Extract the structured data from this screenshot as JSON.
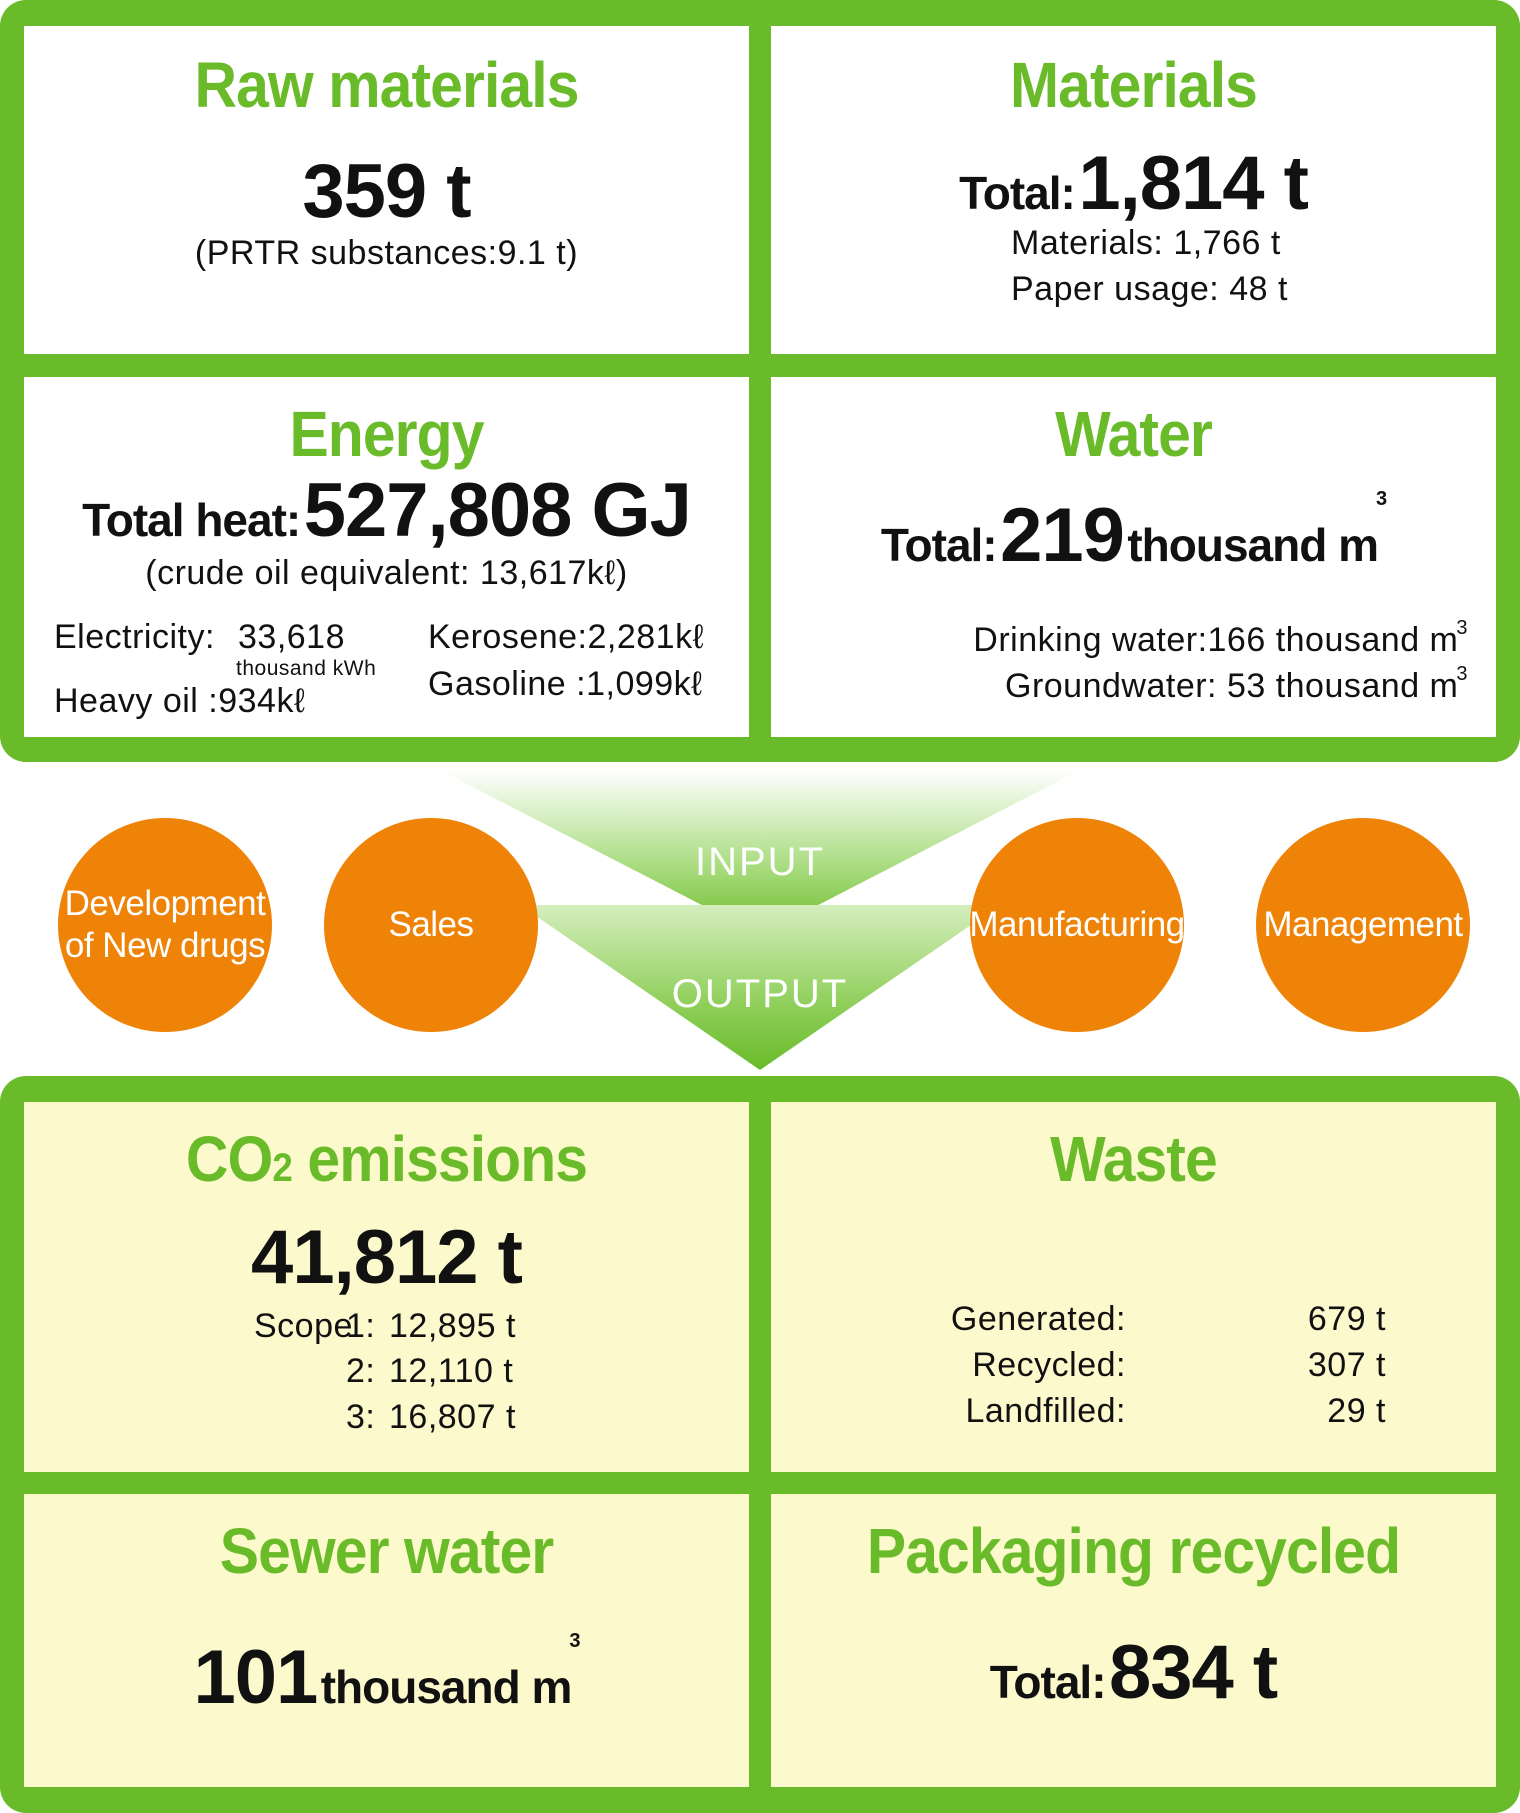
{
  "input": {
    "raw_materials": {
      "title": "Raw materials",
      "value": "359 t",
      "note": "(PRTR substances:9.1 t)"
    },
    "materials": {
      "title": "Materials",
      "total_label": "Total:",
      "total_value": "1,814 t",
      "lines": [
        "Materials: 1,766 t",
        "Paper usage: 48 t"
      ]
    },
    "energy": {
      "title": "Energy",
      "total_label": "Total heat:",
      "total_value": "527,808 GJ",
      "note": "(crude oil equivalent: 13,617kℓ)",
      "electricity_label": "Electricity:",
      "electricity_value": "33,618",
      "electricity_unit": "thousand kWh",
      "heavy_oil": "Heavy oil :934kℓ",
      "kerosene": "Kerosene:2,281kℓ",
      "gasoline": "Gasoline :1,099kℓ"
    },
    "water": {
      "title": "Water",
      "total_label": "Total:",
      "total_value": "219",
      "total_unit": "thousand m",
      "sup": "3",
      "drinking": "Drinking water:166 thousand m",
      "groundwater": "Groundwater: 53 thousand m"
    }
  },
  "middle": {
    "input_label": "INPUT",
    "output_label": "OUTPUT",
    "circles": [
      "Development of New drugs",
      "Sales",
      "Manufacturing",
      "Management"
    ]
  },
  "output": {
    "co2": {
      "title_pre": "CO",
      "title_sub": "2",
      "title_post": " emissions",
      "value": "41,812 t",
      "scope_label": "Scope",
      "scopes": [
        {
          "label": "1:",
          "value": "12,895 t"
        },
        {
          "label": "2:",
          "value": "12,110 t"
        },
        {
          "label": "3:",
          "value": "16,807 t"
        }
      ]
    },
    "waste": {
      "title": "Waste",
      "rows": [
        {
          "label": "Generated:",
          "value": "679 t"
        },
        {
          "label": "Recycled:",
          "value": "307 t"
        },
        {
          "label": "Landfilled:",
          "value": "29 t"
        }
      ]
    },
    "sewer": {
      "title": "Sewer water",
      "value": "101",
      "unit": "thousand m",
      "sup": "3"
    },
    "packaging": {
      "title": "Packaging recycled",
      "total_label": "Total:",
      "total_value": "834 t"
    }
  },
  "colors": {
    "green": "#6abb2a",
    "orange": "#ee8307",
    "output_bg": "#fcf9cc"
  }
}
